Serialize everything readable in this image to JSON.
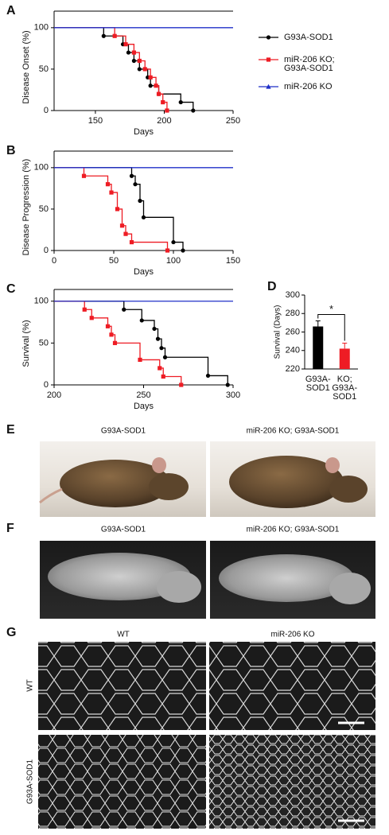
{
  "chart_data": [
    {
      "type": "line",
      "label": "A",
      "drawstyle": "steps-post",
      "ylabel": "Disease Onset (%)",
      "xlabel": "Days",
      "xlim": [
        120,
        250
      ],
      "xticks": [
        150,
        200,
        250
      ],
      "ylim": [
        0,
        120
      ],
      "yticks": [
        0,
        50,
        100
      ],
      "legend": "right",
      "series": [
        {
          "name": "G93A-SOD1",
          "color": "#000000",
          "marker": "circle",
          "x": [
            120,
            156,
            170,
            174,
            178,
            182,
            188,
            190,
            196,
            212,
            221
          ],
          "values": [
            100,
            90,
            80,
            70,
            60,
            50,
            40,
            30,
            20,
            10,
            0
          ]
        },
        {
          "name": "miR-206 KO;\nG93A-SOD1",
          "color": "#ee1c24",
          "marker": "square",
          "x": [
            120,
            164,
            172,
            178,
            182,
            186,
            190,
            194,
            196,
            199,
            202
          ],
          "values": [
            100,
            90,
            80,
            70,
            60,
            50,
            40,
            30,
            20,
            10,
            0
          ]
        },
        {
          "name": "miR-206 KO",
          "color": "#1f2fc8",
          "marker": "triangle",
          "x": [
            120,
            250
          ],
          "values": [
            100,
            100
          ]
        }
      ]
    },
    {
      "type": "line",
      "label": "B",
      "drawstyle": "steps-post",
      "ylabel": "Disease Progression (%)",
      "xlabel": "Days",
      "xlim": [
        0,
        150
      ],
      "xticks": [
        0,
        50,
        100,
        150
      ],
      "ylim": [
        0,
        120
      ],
      "yticks": [
        0,
        50,
        100
      ],
      "series": [
        {
          "color": "#000000",
          "marker": "circle",
          "x": [
            0,
            65,
            68,
            72,
            75,
            100,
            108
          ],
          "values": [
            100,
            90,
            80,
            60,
            40,
            10,
            0
          ]
        },
        {
          "color": "#ee1c24",
          "marker": "square",
          "x": [
            0,
            25,
            45,
            48,
            53,
            57,
            60,
            65,
            95
          ],
          "values": [
            100,
            90,
            80,
            70,
            50,
            30,
            20,
            10,
            0
          ]
        },
        {
          "color": "#1f2fc8",
          "marker": "triangle",
          "x": [
            0,
            150
          ],
          "values": [
            100,
            100
          ]
        }
      ]
    },
    {
      "type": "line",
      "label": "C",
      "drawstyle": "steps-post",
      "ylabel": "Survival (%)",
      "xlabel": "Days",
      "xlim": [
        200,
        300
      ],
      "xticks": [
        200,
        250,
        300
      ],
      "ylim": [
        0,
        114
      ],
      "yticks": [
        0,
        50,
        100
      ],
      "series": [
        {
          "color": "#000000",
          "marker": "circle",
          "x": [
            200,
            239,
            249,
            256,
            258,
            260,
            262,
            286,
            297
          ],
          "values": [
            100,
            90,
            77,
            67,
            55,
            44,
            33,
            11,
            0
          ]
        },
        {
          "color": "#ee1c24",
          "marker": "square",
          "x": [
            200,
            217,
            221,
            230,
            232,
            234,
            248,
            259,
            261,
            271
          ],
          "values": [
            100,
            90,
            80,
            70,
            60,
            50,
            30,
            20,
            10,
            0
          ]
        },
        {
          "color": "#1f2fc8",
          "marker": "triangle",
          "x": [
            200,
            300
          ],
          "values": [
            100,
            100
          ]
        }
      ]
    },
    {
      "type": "bar",
      "label": "D",
      "ylabel": "Survival (Days)",
      "categories": [
        "G93A-\nSOD1",
        "KO;\nG93A-\nSOD1"
      ],
      "values": [
        266,
        242
      ],
      "errors": [
        6,
        6
      ],
      "colors": [
        "#000000",
        "#ee1c24"
      ],
      "ylim": [
        220,
        300
      ],
      "yticks": [
        220,
        240,
        260,
        280,
        300
      ],
      "annotation": "*"
    }
  ],
  "panels": [
    {
      "label": "E",
      "captions": [
        "G93A-SOD1",
        "miR-206 KO; G93A-SOD1"
      ]
    },
    {
      "label": "F",
      "captions": [
        "G93A-SOD1",
        "miR-206 KO; G93A-SOD1"
      ]
    },
    {
      "label": "G",
      "columns": [
        "WT",
        "miR-206 KO"
      ],
      "rows": [
        "WT",
        "G93A-SOD1"
      ]
    }
  ]
}
